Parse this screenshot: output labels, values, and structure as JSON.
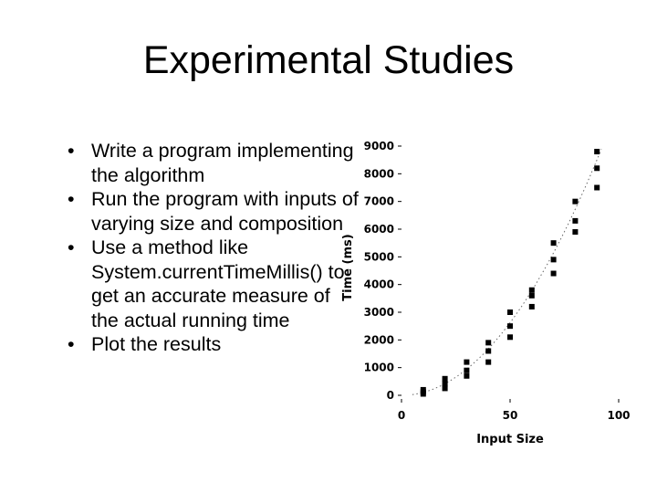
{
  "slide": {
    "title": "Experimental Studies",
    "bullets": [
      "Write a program implementing the algorithm",
      "Run the program with inputs of varying size and composition",
      "Use a method like System.currentTimeMillis() to get an accurate measure of the actual running time",
      "Plot the results"
    ]
  },
  "chart_data": {
    "type": "scatter",
    "xlabel": "Input Size",
    "ylabel": "Time (ms)",
    "xlim": [
      0,
      100
    ],
    "ylim": [
      0,
      9000
    ],
    "x_ticks": [
      0,
      50,
      100
    ],
    "y_ticks": [
      0,
      1000,
      2000,
      3000,
      4000,
      5000,
      6000,
      7000,
      8000,
      9000
    ],
    "grid": false,
    "legend": "none",
    "trend_line": "dotted",
    "marker_color": "#000000",
    "points": [
      {
        "x": 10,
        "y": 50
      },
      {
        "x": 10,
        "y": 120
      },
      {
        "x": 10,
        "y": 200
      },
      {
        "x": 20,
        "y": 250
      },
      {
        "x": 20,
        "y": 420
      },
      {
        "x": 20,
        "y": 600
      },
      {
        "x": 30,
        "y": 700
      },
      {
        "x": 30,
        "y": 900
      },
      {
        "x": 30,
        "y": 1200
      },
      {
        "x": 40,
        "y": 1200
      },
      {
        "x": 40,
        "y": 1600
      },
      {
        "x": 40,
        "y": 1900
      },
      {
        "x": 50,
        "y": 2100
      },
      {
        "x": 50,
        "y": 2500
      },
      {
        "x": 50,
        "y": 3000
      },
      {
        "x": 60,
        "y": 3200
      },
      {
        "x": 60,
        "y": 3600
      },
      {
        "x": 60,
        "y": 3800
      },
      {
        "x": 70,
        "y": 4400
      },
      {
        "x": 70,
        "y": 4900
      },
      {
        "x": 70,
        "y": 5500
      },
      {
        "x": 80,
        "y": 5900
      },
      {
        "x": 80,
        "y": 6300
      },
      {
        "x": 80,
        "y": 7000
      },
      {
        "x": 90,
        "y": 7500
      },
      {
        "x": 90,
        "y": 8200
      },
      {
        "x": 90,
        "y": 8800
      }
    ]
  }
}
